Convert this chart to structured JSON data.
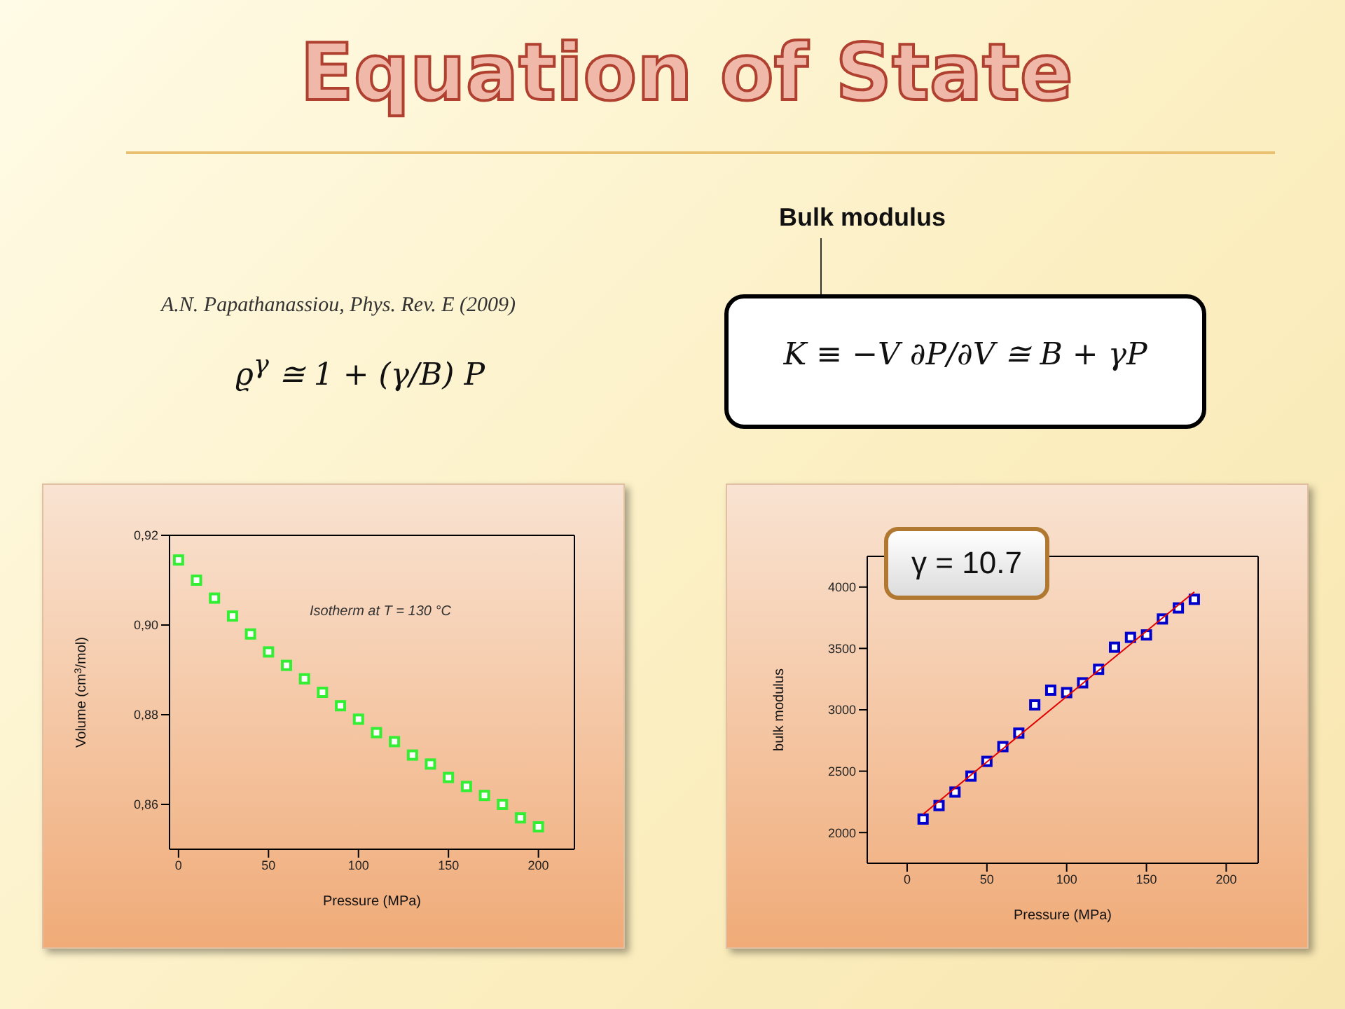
{
  "chart_data": [
    {
      "type": "other",
      "title": "Equation of State",
      "annotations": [
        "A.N. Papathanassiou, Phys. Rev. E (2009)",
        "ϱ$^{γ}$ ≅ 1 + (γ/B) P",
        "Bulk modulus",
        "K ≡ −V ∂P/∂V ≅ B + γP"
      ]
    },
    {
      "type": "scatter",
      "xlabel": "Pressure (MPa)",
      "ylabel": "Volume (cm$^{3}$/mol)",
      "annotations": [
        "Isotherm at T = 130 °C"
      ],
      "marker": "square",
      "x": [
        0,
        10,
        20,
        30,
        40,
        50,
        60,
        70,
        80,
        90,
        100,
        110,
        120,
        130,
        140,
        150,
        160,
        170,
        180,
        190,
        200
      ],
      "series": [
        {
          "color": "#33ee33",
          "values": [
            0.9145,
            0.91,
            0.906,
            0.902,
            0.898,
            0.894,
            0.891,
            0.888,
            0.885,
            0.882,
            0.879,
            0.876,
            0.874,
            0.871,
            0.869,
            0.866,
            0.864,
            0.862,
            0.86,
            0.857,
            0.855
          ]
        }
      ],
      "xlim": [
        -5,
        220
      ],
      "xticks": [
        0,
        50,
        100,
        150,
        200
      ],
      "ylim": [
        0.85,
        0.92
      ],
      "yticks": [
        {
          "value": 0.86,
          "label": "0,86"
        },
        {
          "value": 0.88,
          "label": "0,88"
        },
        {
          "value": 0.9,
          "label": "0,90"
        },
        {
          "value": 0.92,
          "label": "0,92"
        }
      ]
    },
    {
      "type": "scatter",
      "xlabel": "Pressure (MPa)",
      "ylabel": "bulk modulus",
      "annotations": [
        "γ = 10.7"
      ],
      "marker": "square",
      "x": [
        10,
        20,
        30,
        40,
        50,
        60,
        70,
        80,
        90,
        100,
        110,
        120,
        130,
        140,
        150,
        160,
        170,
        180
      ],
      "series": [
        {
          "color": "#0000cc",
          "values": [
            2110,
            2220,
            2330,
            2460,
            2580,
            2700,
            2810,
            3040,
            3160,
            3140,
            3220,
            3330,
            3510,
            3590,
            3610,
            3740,
            3830,
            3900
          ]
        },
        {
          "type": "line",
          "marker": "none",
          "color": "#e00000",
          "x": [
            10,
            180
          ],
          "values": [
            2150,
            3960
          ]
        }
      ],
      "xlim": [
        -25,
        220
      ],
      "xticks": [
        0,
        50,
        100,
        150,
        200
      ],
      "ylim": [
        1750,
        4250
      ],
      "yticks": [
        2000,
        2500,
        3000,
        3500,
        4000
      ]
    }
  ]
}
